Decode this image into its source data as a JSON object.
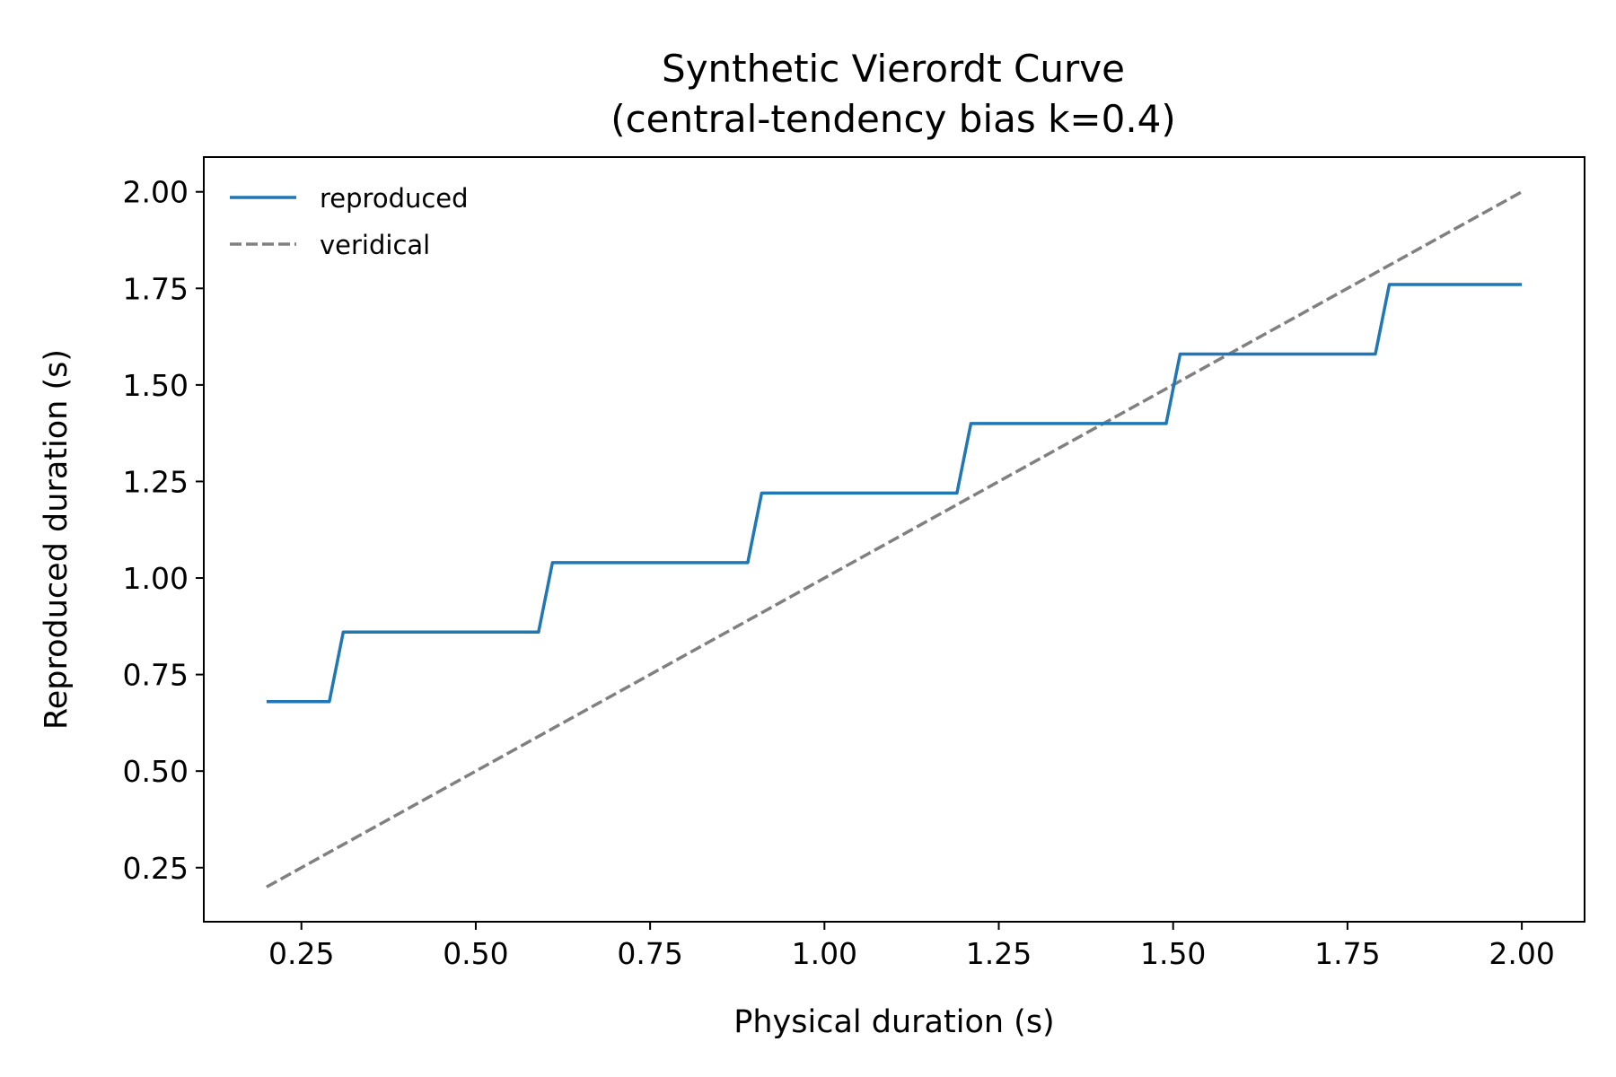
{
  "chart_data": {
    "type": "line",
    "title": "Synthetic Vierordt Curve",
    "subtitle": "(central-tendency bias k=0.4)",
    "xlabel": "Physical duration (s)",
    "ylabel": "Reproduced duration (s)",
    "xlim": [
      0.11,
      2.09
    ],
    "ylim": [
      0.11,
      2.09
    ],
    "xticks": [
      "0.25",
      "0.50",
      "0.75",
      "1.00",
      "1.25",
      "1.50",
      "1.75",
      "2.00"
    ],
    "yticks": [
      "0.25",
      "0.50",
      "0.75",
      "1.00",
      "1.25",
      "1.50",
      "1.75",
      "2.00"
    ],
    "grid": false,
    "legend_position": "top-left",
    "series": [
      {
        "name": "reproduced",
        "color": "#1f77b4",
        "style": "solid",
        "x": [
          0.2,
          0.29,
          0.31,
          0.59,
          0.61,
          0.89,
          0.91,
          1.19,
          1.21,
          1.49,
          1.51,
          1.79,
          1.81,
          2.0
        ],
        "y": [
          0.68,
          0.68,
          0.86,
          0.86,
          1.04,
          1.04,
          1.22,
          1.22,
          1.4,
          1.4,
          1.58,
          1.58,
          1.76,
          1.76
        ]
      },
      {
        "name": "veridical",
        "color": "#808080",
        "style": "dashed",
        "x": [
          0.2,
          2.0
        ],
        "y": [
          0.2,
          2.0
        ]
      }
    ]
  }
}
